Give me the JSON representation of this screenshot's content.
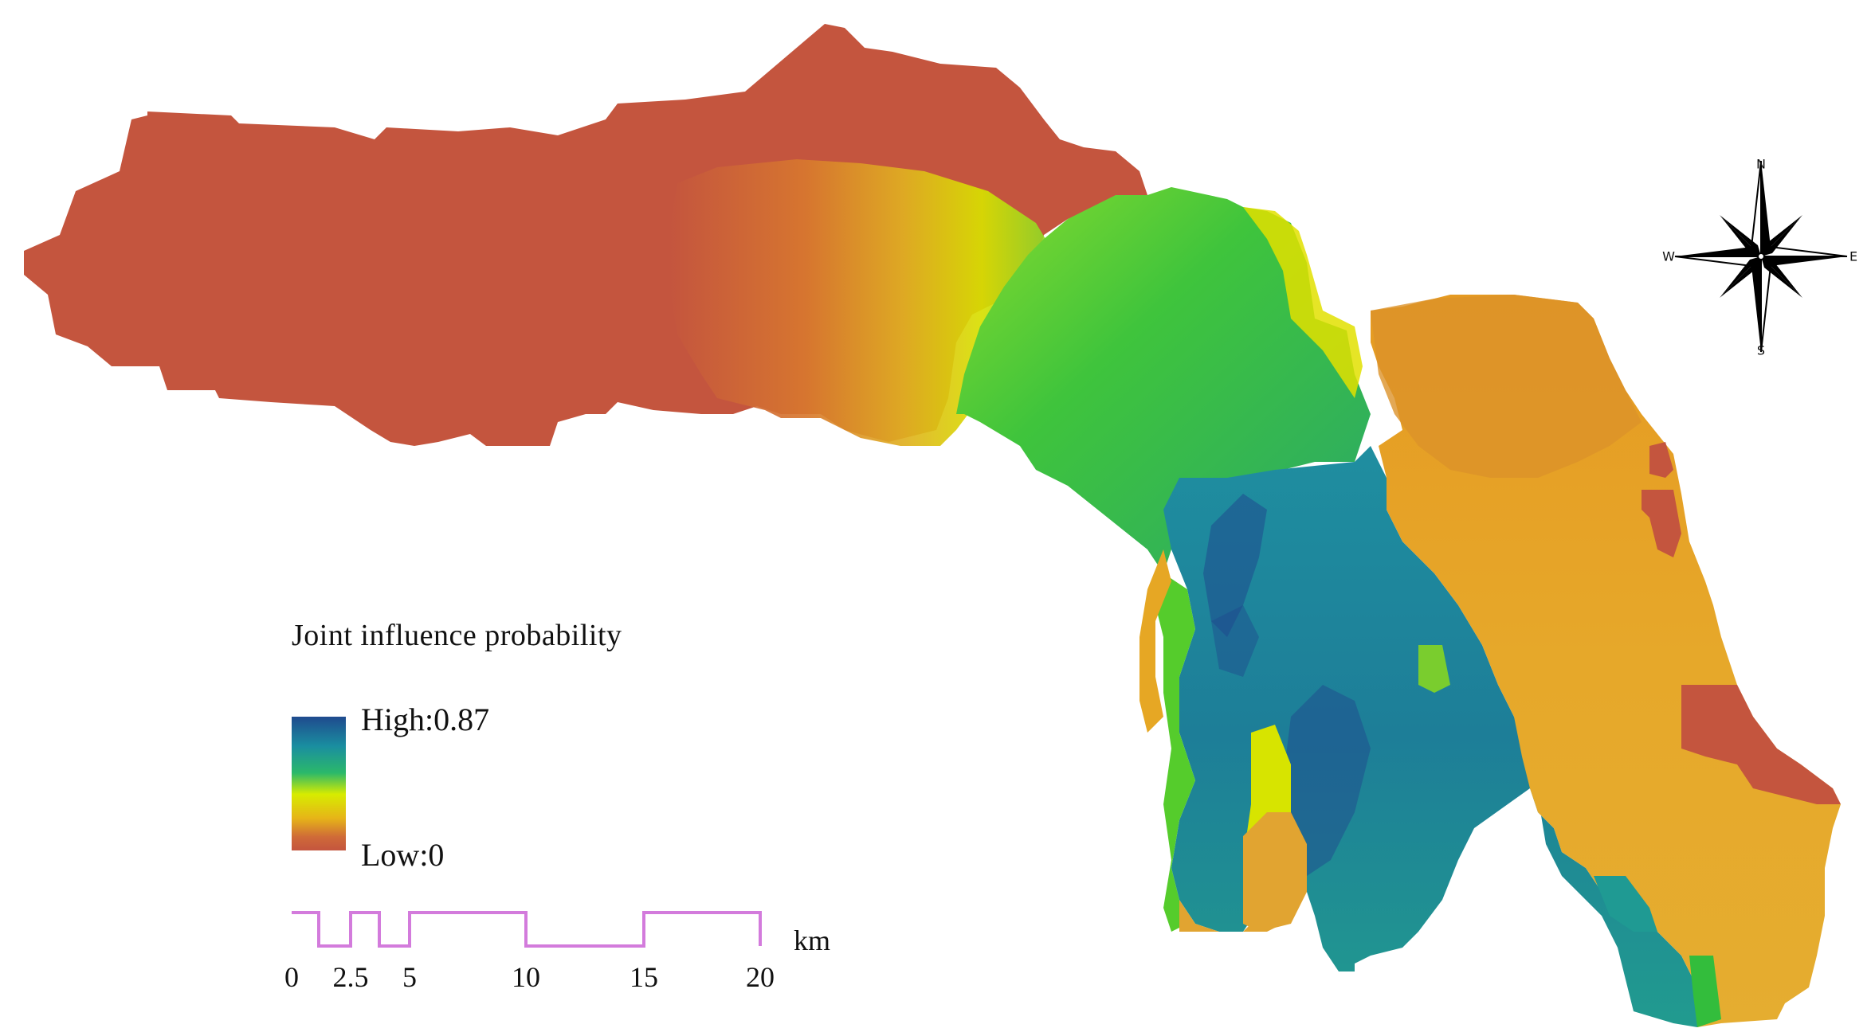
{
  "legend": {
    "title": "Joint influence probability",
    "high_label": "High:0.87",
    "low_label": "Low:0",
    "high_value": 0.87,
    "low_value": 0
  },
  "scale_bar": {
    "unit": "km",
    "ticks": [
      "0",
      "2.5",
      "5",
      "10",
      "15",
      "20"
    ],
    "color": "#d37bdc"
  },
  "compass": {
    "north": "N",
    "south": "S",
    "east": "E",
    "west": "W"
  },
  "colors": {
    "low": "#c4553e",
    "orange": "#e29a2a",
    "yellow": "#e9e100",
    "green": "#35c33e",
    "teal": "#1f9a93",
    "high": "#1f4a8e"
  }
}
